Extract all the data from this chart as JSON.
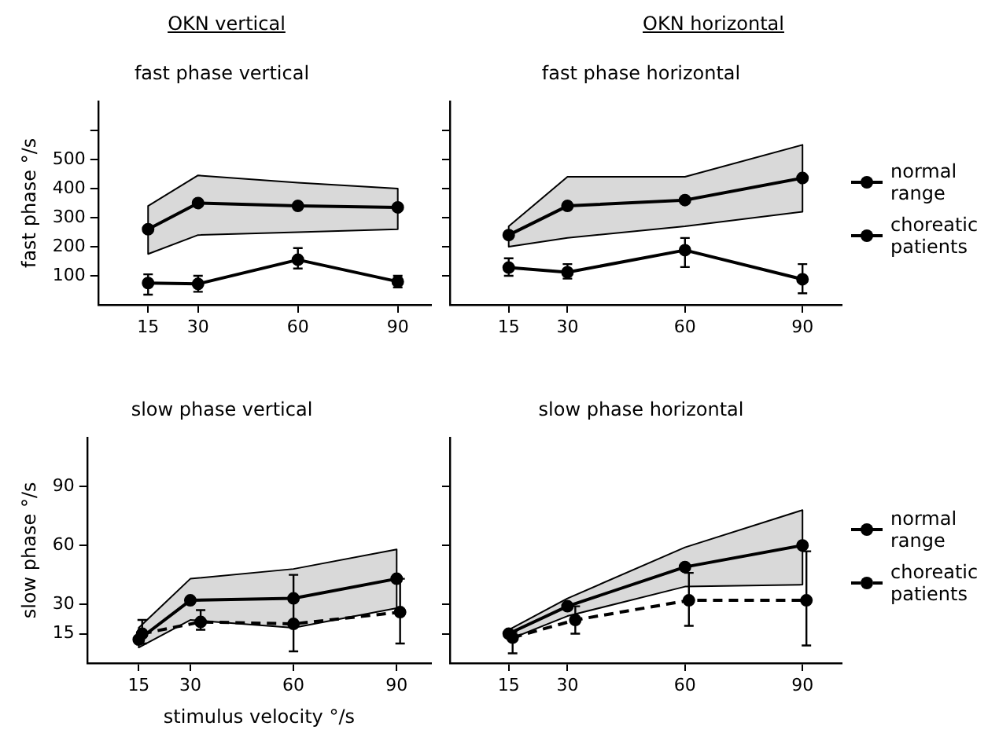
{
  "chart_data": [
    {
      "type": "line",
      "title": "fast phase vertical",
      "ylabel": "fast phase °/s",
      "annotations": [
        "OKN vertical"
      ],
      "x": [
        15,
        30,
        60,
        90
      ],
      "xlim": [
        0,
        100
      ],
      "xticks": [
        15,
        30,
        60,
        90
      ],
      "ylim": [
        0,
        700
      ],
      "yticks": [
        100,
        200,
        300,
        400,
        500,
        {
          "value": 600,
          "label": null
        }
      ],
      "grid": false,
      "marker": "circle",
      "series": [
        {
          "color": "#000000",
          "values": [
            260,
            350,
            340,
            335
          ],
          "lower": [
            175,
            240,
            250,
            260
          ],
          "upper": [
            340,
            445,
            420,
            400
          ]
        },
        {
          "color": "#000000",
          "line_style": "solid",
          "values": [
            75,
            72,
            155,
            80
          ],
          "errors": [
            [
              35,
              105
            ],
            [
              45,
              100
            ],
            [
              125,
              195
            ],
            [
              60,
              100
            ]
          ]
        }
      ]
    },
    {
      "type": "line",
      "title": "fast phase horizontal",
      "annotations": [
        "OKN horizontal"
      ],
      "x": [
        15,
        30,
        60,
        90
      ],
      "xlim": [
        0,
        100
      ],
      "xticks": [
        15,
        30,
        60,
        90
      ],
      "ylim": [
        0,
        700
      ],
      "yticks": [
        100,
        200,
        300,
        400,
        500,
        {
          "value": 600,
          "label": null
        }
      ],
      "tick_labels": "x",
      "grid": false,
      "marker": "circle",
      "legend": "right",
      "series": [
        {
          "name": "normal range",
          "color": "#000000",
          "values": [
            240,
            340,
            360,
            436
          ],
          "lower": [
            200,
            230,
            270,
            320
          ],
          "upper": [
            270,
            440,
            440,
            550
          ]
        },
        {
          "name": "choreatic patients",
          "color": "#000000",
          "line_style": "solid",
          "values": [
            128,
            112,
            188,
            88
          ],
          "errors": [
            [
              100,
              160
            ],
            [
              90,
              140
            ],
            [
              130,
              230
            ],
            [
              40,
              140
            ]
          ]
        }
      ]
    },
    {
      "type": "line",
      "title": "slow phase vertical",
      "ylabel": "slow phase °/s",
      "xlabel": "stimulus velocity °/s",
      "x": [
        15,
        30,
        60,
        90
      ],
      "xlim": [
        0,
        100
      ],
      "xticks": [
        15,
        30,
        60,
        90
      ],
      "ylim": [
        0,
        115
      ],
      "yticks": [
        15,
        30,
        60,
        90
      ],
      "grid": false,
      "marker": "circle",
      "series": [
        {
          "color": "#000000",
          "values": [
            12,
            32,
            33,
            43
          ],
          "lower": [
            8,
            22,
            18,
            28
          ],
          "upper": [
            18,
            43,
            48,
            58
          ]
        },
        {
          "color": "#000000",
          "line_style": "dashed",
          "x": [
            16,
            33,
            60,
            91
          ],
          "values": [
            15,
            21,
            20,
            26
          ],
          "errors": [
            [
              10,
              22
            ],
            [
              17,
              27
            ],
            [
              6,
              45
            ],
            [
              10,
              43
            ]
          ]
        }
      ]
    },
    {
      "type": "line",
      "title": "slow phase horizontal",
      "x": [
        15,
        30,
        60,
        90
      ],
      "xlim": [
        0,
        100
      ],
      "xticks": [
        15,
        30,
        60,
        90
      ],
      "ylim": [
        0,
        115
      ],
      "yticks": [
        15,
        30,
        60,
        90
      ],
      "tick_labels": "x",
      "grid": false,
      "marker": "circle",
      "legend": "right",
      "series": [
        {
          "name": "normal range",
          "color": "#000000",
          "values": [
            15,
            29,
            49,
            60
          ],
          "lower": [
            12,
            24,
            39,
            40
          ],
          "upper": [
            17,
            33,
            59,
            78
          ]
        },
        {
          "name": "choreatic patients",
          "color": "#000000",
          "line_style": "dashed",
          "x": [
            16,
            32,
            61,
            91
          ],
          "values": [
            13,
            22,
            32,
            32
          ],
          "errors": [
            [
              5,
              16
            ],
            [
              15,
              29
            ],
            [
              19,
              46
            ],
            [
              9,
              57
            ]
          ]
        }
      ]
    }
  ]
}
